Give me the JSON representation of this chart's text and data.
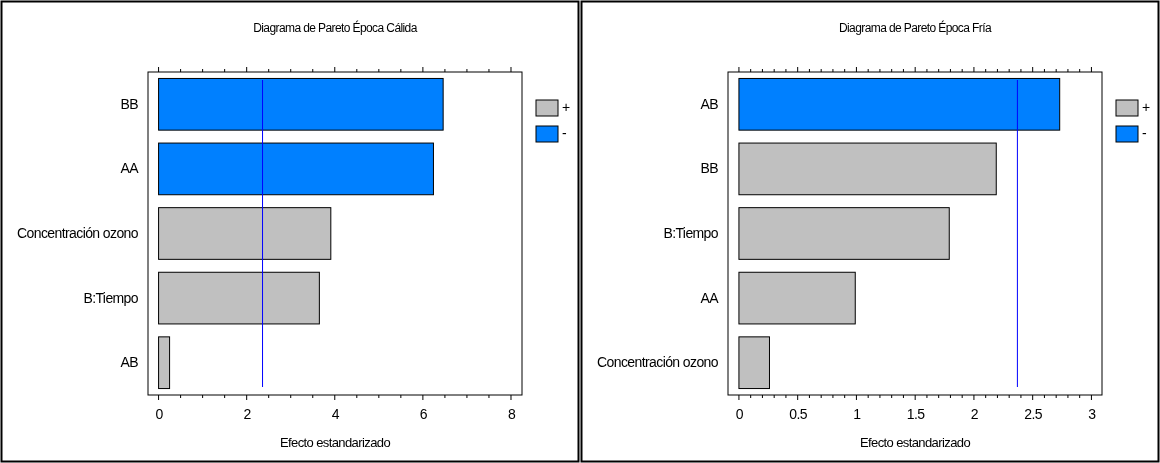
{
  "chart_data": [
    {
      "type": "bar",
      "orientation": "horizontal",
      "title": "Diagrama de Pareto Época Cálida",
      "xlabel": "Efecto estandarizado",
      "categories": [
        "BB",
        "AA",
        "Concentración ozono",
        "B:Tiempo",
        "AB"
      ],
      "series": [
        {
          "name": "+",
          "color": "#c0c0c0",
          "values": [
            null,
            null,
            3.91,
            3.65,
            0.25
          ]
        },
        {
          "name": "-",
          "color": "#0080ff",
          "values": [
            6.46,
            6.24,
            null,
            null,
            null
          ]
        }
      ],
      "xlim": [
        -0.24,
        8.25
      ],
      "xticks": [
        0,
        {
          "value": 0.5,
          "label": null
        },
        {
          "value": 1,
          "label": null
        },
        {
          "value": 1.5,
          "label": null
        },
        2,
        {
          "value": 2.5,
          "label": null
        },
        {
          "value": 3,
          "label": null
        },
        {
          "value": 3.5,
          "label": null
        },
        4,
        {
          "value": 4.5,
          "label": null
        },
        {
          "value": 5,
          "label": null
        },
        {
          "value": 5.5,
          "label": null
        },
        6,
        {
          "value": 6.5,
          "label": null
        },
        {
          "value": 7,
          "label": null
        },
        {
          "value": 7.5,
          "label": null
        },
        8
      ],
      "ref_lines": [
        {
          "axis": "x",
          "value": 2.36,
          "color": "#0000ff"
        }
      ],
      "legend": "right",
      "grid": false
    },
    {
      "type": "bar",
      "orientation": "horizontal",
      "title": "Diagrama de Pareto Época Fría",
      "xlabel": "Efecto estandarizado",
      "categories": [
        "AB",
        "BB",
        "B:Tiempo",
        "AA",
        "Concentración ozono"
      ],
      "series": [
        {
          "name": "+",
          "color": "#c0c0c0",
          "values": [
            null,
            2.19,
            1.79,
            0.99,
            0.26
          ]
        },
        {
          "name": "-",
          "color": "#0080ff",
          "values": [
            2.73,
            null,
            null,
            null,
            null
          ]
        }
      ],
      "xlim": [
        -0.093,
        3.09
      ],
      "xticks": [
        0,
        {
          "value": 0.1,
          "label": null
        },
        {
          "value": 0.2,
          "label": null
        },
        {
          "value": 0.3,
          "label": null
        },
        {
          "value": 0.4,
          "label": null
        },
        0.5,
        {
          "value": 0.6,
          "label": null
        },
        {
          "value": 0.7,
          "label": null
        },
        {
          "value": 0.8,
          "label": null
        },
        {
          "value": 0.9,
          "label": null
        },
        1,
        {
          "value": 1.1,
          "label": null
        },
        {
          "value": 1.2,
          "label": null
        },
        {
          "value": 1.3,
          "label": null
        },
        {
          "value": 1.4,
          "label": null
        },
        1.5,
        {
          "value": 1.6,
          "label": null
        },
        {
          "value": 1.7,
          "label": null
        },
        {
          "value": 1.8,
          "label": null
        },
        {
          "value": 1.9,
          "label": null
        },
        2,
        {
          "value": 2.1,
          "label": null
        },
        {
          "value": 2.2,
          "label": null
        },
        {
          "value": 2.3,
          "label": null
        },
        {
          "value": 2.4,
          "label": null
        },
        2.5,
        {
          "value": 2.6,
          "label": null
        },
        {
          "value": 2.7,
          "label": null
        },
        {
          "value": 2.8,
          "label": null
        },
        {
          "value": 2.9,
          "label": null
        },
        3
      ],
      "ref_lines": [
        {
          "axis": "x",
          "value": 2.37,
          "color": "#0000ff"
        }
      ],
      "legend": "right",
      "grid": false
    }
  ]
}
